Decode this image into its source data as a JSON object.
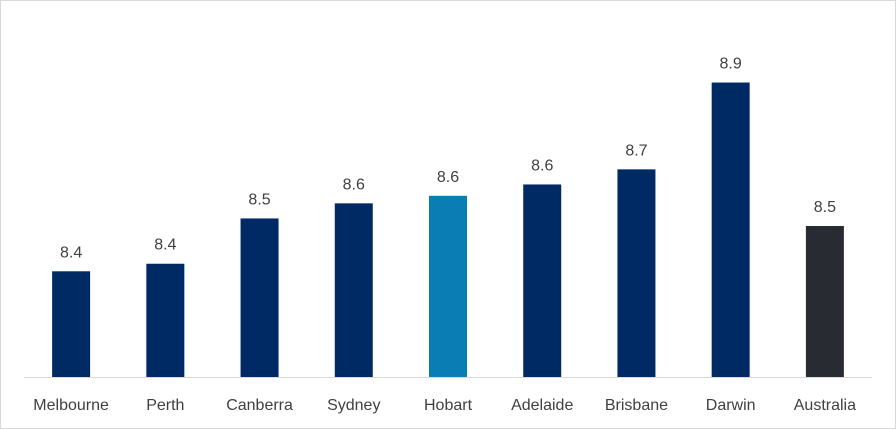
{
  "chart_data": {
    "type": "bar",
    "title": "",
    "xlabel": "",
    "ylabel": "",
    "categories": [
      "Melbourne",
      "Perth",
      "Canberra",
      "Sydney",
      "Hobart",
      "Adelaide",
      "Brisbane",
      "Darwin",
      "Australia"
    ],
    "values": [
      8.39,
      8.41,
      8.53,
      8.57,
      8.59,
      8.62,
      8.66,
      8.89,
      8.51
    ],
    "data_labels": [
      "8.4",
      "8.4",
      "8.5",
      "8.6",
      "8.6",
      "8.6",
      "8.7",
      "8.9",
      "8.5"
    ],
    "bar_colors": [
      "#002A64",
      "#002A64",
      "#002A64",
      "#002A64",
      "#0A7DB4",
      "#002A64",
      "#002A64",
      "#002A64",
      "#282B31"
    ],
    "ylim": [
      8.11,
      9.0
    ],
    "y_axis_shown": false,
    "grid": false,
    "legend": "none"
  }
}
